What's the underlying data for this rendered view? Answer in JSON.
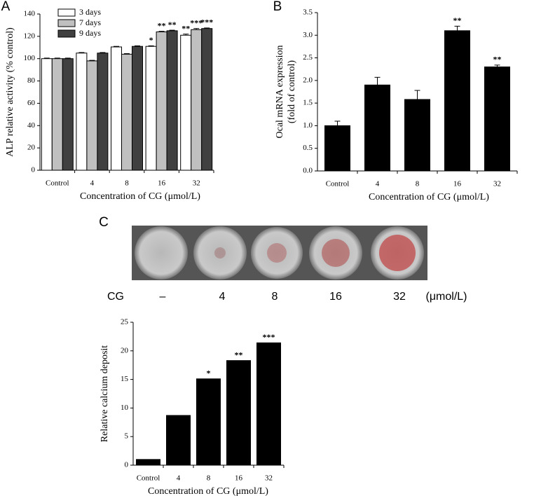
{
  "chart_data": [
    {
      "type": "bar",
      "panel_label": "A",
      "ylabel": "ALP relative activity (% control)",
      "xlabel": "Concentration of CG (μmol/L)",
      "categories": [
        "Control",
        "4",
        "8",
        "16",
        "32"
      ],
      "series": [
        {
          "name": "3 days",
          "color": "#ffffff",
          "values": [
            100,
            105,
            110.5,
            111,
            121
          ],
          "errors": [
            0.5,
            0.5,
            0.5,
            0.5,
            1
          ],
          "significance": [
            null,
            null,
            null,
            "*",
            "**"
          ]
        },
        {
          "name": "7 days",
          "color": "#c0c0c0",
          "values": [
            100,
            98,
            104,
            124,
            126
          ],
          "errors": [
            0.5,
            0.5,
            0.5,
            0.5,
            1
          ],
          "significance": [
            null,
            null,
            null,
            "**",
            "***"
          ]
        },
        {
          "name": "9 days",
          "color": "#404040",
          "values": [
            100,
            105,
            111,
            125,
            127
          ],
          "errors": [
            0.5,
            0.5,
            0.5,
            0.5,
            0.5
          ],
          "significance": [
            null,
            null,
            null,
            "**",
            "***"
          ]
        }
      ],
      "ylim": [
        0,
        140
      ],
      "yticks": [
        0,
        20,
        40,
        60,
        80,
        100,
        120,
        140
      ],
      "grid": false
    },
    {
      "type": "bar",
      "panel_label": "B",
      "ylabel": [
        "Ocal mRNA expression",
        "(fold of  control)"
      ],
      "xlabel": "Concentration of CG (μmol/L)",
      "categories": [
        "Control",
        "4",
        "8",
        "16",
        "32"
      ],
      "values": [
        1.0,
        1.9,
        1.58,
        3.1,
        2.3
      ],
      "errors": [
        0.1,
        0.17,
        0.2,
        0.1,
        0.04
      ],
      "significance": [
        null,
        null,
        null,
        "**",
        "**"
      ],
      "color": "#000000",
      "ylim": [
        0,
        3.5
      ],
      "yticks": [
        {
          "value": 0,
          "label": "0.0"
        },
        0.5,
        {
          "value": 1,
          "label": "1.0"
        },
        1.5,
        {
          "value": 2,
          "label": "2.0"
        },
        2.5,
        {
          "value": 3,
          "label": "3.0"
        },
        3.5
      ],
      "grid": false
    },
    {
      "type": "bar",
      "panel_label": "C",
      "plate_labels": {
        "prefix": "CG",
        "doses": [
          "–",
          "4",
          "8",
          "16",
          "32"
        ],
        "unit": "(μmol/L)"
      },
      "ylabel": "Relative calcium deposit",
      "xlabel": "Concentration of CG (μmol/L)",
      "categories": [
        "Control",
        "4",
        "8",
        "16",
        "32"
      ],
      "values": [
        1,
        8.7,
        15.1,
        18.3,
        21.4
      ],
      "significance": [
        null,
        null,
        "*",
        "**",
        "***"
      ],
      "color": "#000000",
      "ylim": [
        0,
        25
      ],
      "yticks": [
        0,
        5,
        10,
        15,
        20,
        25
      ],
      "grid": false
    }
  ]
}
